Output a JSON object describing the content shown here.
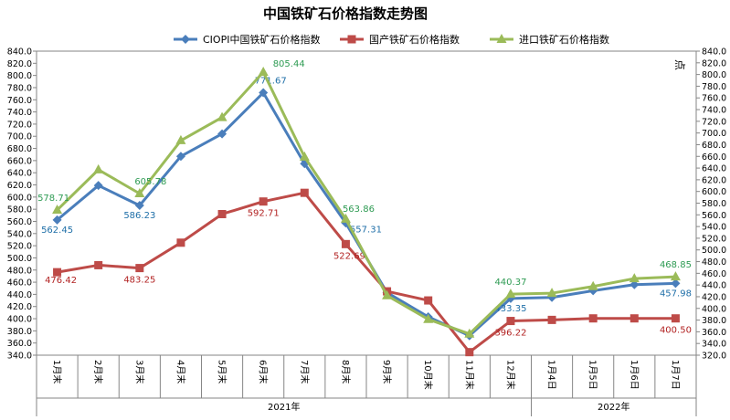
{
  "chart_data": {
    "type": "line",
    "title": "中国铁矿石价格指数走势图",
    "categories": [
      "1月末",
      "2月末",
      "3月末",
      "4月末",
      "5月末",
      "6月末",
      "7月末",
      "8月末",
      "9月末",
      "10月末",
      "11月末",
      "12月末",
      "1月4日",
      "1月5日",
      "1月6日",
      "1月7日"
    ],
    "year_groups": [
      {
        "label": "2021年",
        "start": 0,
        "end": 11
      },
      {
        "label": "2022年",
        "start": 12,
        "end": 15
      }
    ],
    "ylim": [
      340,
      840
    ],
    "ytick_step": 20,
    "yticks_left": [
      "340.0",
      "360.0",
      "380.0",
      "400.0",
      "420.0",
      "440.0",
      "460.0",
      "480.0",
      "500.0",
      "520.0",
      "540.0",
      "560.0",
      "580.0",
      "600.0",
      "620.0",
      "640.0",
      "660.0",
      "680.0",
      "700.0",
      "720.0",
      "740.0",
      "760.0",
      "780.0",
      "800.0",
      "820.0",
      "840.0"
    ],
    "yticks_right": [
      "320.0",
      "340.0",
      "360.0",
      "380.0",
      "400.0",
      "420.0",
      "440.0",
      "460.0",
      "480.0",
      "500.0",
      "520.0",
      "540.0",
      "560.0",
      "580.0",
      "600.0",
      "620.0",
      "640.0",
      "660.0",
      "680.0",
      "700.0",
      "720.0",
      "740.0",
      "760.0",
      "780.0",
      "800.0",
      "820.0",
      "840.0"
    ],
    "y2lim": [
      320,
      840
    ],
    "y2label": "点",
    "legend_position": "top",
    "grid": false,
    "series": [
      {
        "name": "CIOPI中国铁矿石价格指数",
        "color": "#4a7ebb",
        "marker": "diamond",
        "values": [
          562.45,
          619,
          586.23,
          667,
          704,
          771.67,
          655,
          557.31,
          443,
          403,
          372,
          433.35,
          435,
          446,
          456,
          457.98
        ],
        "labels": {
          "0": "562.45",
          "2": "586.23",
          "5": "771.67",
          "7": "557.31",
          "11": "433.35",
          "15": "457.98"
        }
      },
      {
        "name": "国产铁矿石价格指数",
        "color": "#be4b48",
        "marker": "square",
        "values": [
          476.42,
          488,
          483.25,
          525,
          572,
          592.71,
          607,
          522.69,
          445,
          430,
          345,
          396.22,
          398,
          400.5,
          400.5,
          400.5
        ],
        "labels": {
          "0": "476.42",
          "2": "483.25",
          "5": "592.71",
          "7": "522.69",
          "11": "396.22",
          "15": "400.50"
        }
      },
      {
        "name": "进口铁矿石价格指数",
        "color": "#9bbb59",
        "marker": "triangle",
        "values": [
          578.71,
          645,
          605.78,
          693,
          731,
          805.44,
          666,
          563.86,
          438,
          399,
          375,
          440.37,
          442,
          453,
          466,
          468.85
        ],
        "labels": {
          "0": "578.71",
          "2": "605.78",
          "5": "805.44",
          "7": "563.86",
          "11": "440.37",
          "15": "468.85"
        }
      }
    ]
  }
}
